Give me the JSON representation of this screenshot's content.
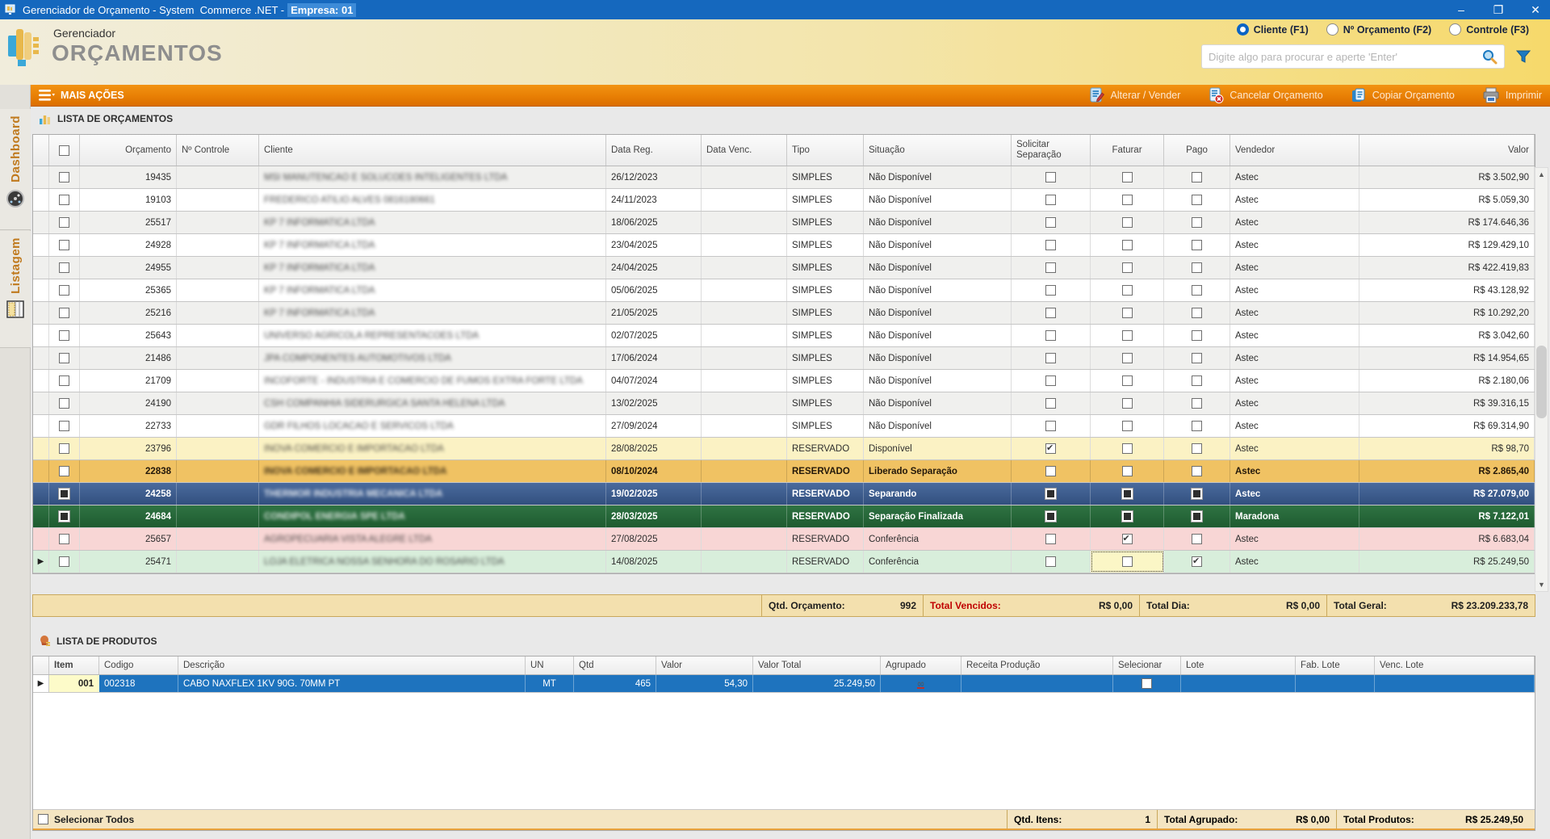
{
  "window": {
    "title": "Gerenciador de Orçamento - System  Commerce .NET -",
    "title_highlight": "Empresa: 01",
    "minimize": "–",
    "maximize": "❐",
    "close": "✕"
  },
  "header": {
    "app_subtitle": "Gerenciador",
    "app_title": "ORÇAMENTOS",
    "search_placeholder": "Digite algo para procurar e aperte 'Enter'",
    "radios": [
      {
        "label": "Cliente (F1)",
        "selected": true
      },
      {
        "label": "Nº Orçamento (F2)",
        "selected": false
      },
      {
        "label": "Controle (F3)",
        "selected": false
      }
    ]
  },
  "sidebar": {
    "tabs": [
      {
        "label": "Dashboard",
        "icon": "gauge-icon"
      },
      {
        "label": "Listagem",
        "icon": "grid-icon"
      }
    ]
  },
  "toolbar": {
    "menu_label": "MAIS AÇÕES",
    "buttons": [
      {
        "label": "Alterar / Vender",
        "icon": "edit-document-icon"
      },
      {
        "label": "Cancelar Orçamento",
        "icon": "cancel-document-icon"
      },
      {
        "label": "Copiar Orçamento",
        "icon": "copy-icon"
      },
      {
        "label": "Imprimir",
        "icon": "printer-icon"
      }
    ]
  },
  "orcamentos": {
    "section_title": "LISTA DE ORÇAMENTOS",
    "columns": [
      "",
      "",
      "Orçamento",
      "Nº Controle",
      "Cliente",
      "Data Reg.",
      "Data Venc.",
      "Tipo",
      "Situação",
      "Solicitar Separação",
      "Faturar",
      "Pago",
      "Vendedor",
      "Valor"
    ],
    "rows": [
      {
        "orcamento": "19435",
        "controle": "",
        "cliente": "MSI MANUTENCAO E SOLUCOES INTELIGENTES LTDA",
        "data_reg": "26/12/2023",
        "data_venc": "",
        "tipo": "SIMPLES",
        "situacao": "Não Disponível",
        "sel": "un",
        "solicitar": "un",
        "faturar": "un",
        "pago": "un",
        "vendedor": "Astec",
        "valor": "R$ 3.502,90",
        "style": "odd",
        "marker": false
      },
      {
        "orcamento": "19103",
        "controle": "",
        "cliente": "FREDERICO ATILIO ALVES 0816180661",
        "data_reg": "24/11/2023",
        "data_venc": "",
        "tipo": "SIMPLES",
        "situacao": "Não Disponível",
        "sel": "un",
        "solicitar": "un",
        "faturar": "un",
        "pago": "un",
        "vendedor": "Astec",
        "valor": "R$ 5.059,30",
        "style": "",
        "marker": false
      },
      {
        "orcamento": "25517",
        "controle": "",
        "cliente": "KP 7 INFORMATICA LTDA",
        "data_reg": "18/06/2025",
        "data_venc": "",
        "tipo": "SIMPLES",
        "situacao": "Não Disponível",
        "sel": "un",
        "solicitar": "un",
        "faturar": "un",
        "pago": "un",
        "vendedor": "Astec",
        "valor": "R$ 174.646,36",
        "style": "odd",
        "marker": false
      },
      {
        "orcamento": "24928",
        "controle": "",
        "cliente": "KP 7 INFORMATICA LTDA",
        "data_reg": "23/04/2025",
        "data_venc": "",
        "tipo": "SIMPLES",
        "situacao": "Não Disponível",
        "sel": "un",
        "solicitar": "un",
        "faturar": "un",
        "pago": "un",
        "vendedor": "Astec",
        "valor": "R$ 129.429,10",
        "style": "",
        "marker": false
      },
      {
        "orcamento": "24955",
        "controle": "",
        "cliente": "KP 7 INFORMATICA LTDA",
        "data_reg": "24/04/2025",
        "data_venc": "",
        "tipo": "SIMPLES",
        "situacao": "Não Disponível",
        "sel": "un",
        "solicitar": "un",
        "faturar": "un",
        "pago": "un",
        "vendedor": "Astec",
        "valor": "R$ 422.419,83",
        "style": "odd",
        "marker": false
      },
      {
        "orcamento": "25365",
        "controle": "",
        "cliente": "KP 7 INFORMATICA LTDA",
        "data_reg": "05/06/2025",
        "data_venc": "",
        "tipo": "SIMPLES",
        "situacao": "Não Disponível",
        "sel": "un",
        "solicitar": "un",
        "faturar": "un",
        "pago": "un",
        "vendedor": "Astec",
        "valor": "R$ 43.128,92",
        "style": "",
        "marker": false
      },
      {
        "orcamento": "25216",
        "controle": "",
        "cliente": "KP 7 INFORMATICA LTDA",
        "data_reg": "21/05/2025",
        "data_venc": "",
        "tipo": "SIMPLES",
        "situacao": "Não Disponível",
        "sel": "un",
        "solicitar": "un",
        "faturar": "un",
        "pago": "un",
        "vendedor": "Astec",
        "valor": "R$ 10.292,20",
        "style": "odd",
        "marker": false
      },
      {
        "orcamento": "25643",
        "controle": "",
        "cliente": "UNIVERSO AGRICOLA REPRESENTACOES LTDA",
        "data_reg": "02/07/2025",
        "data_venc": "",
        "tipo": "SIMPLES",
        "situacao": "Não Disponível",
        "sel": "un",
        "solicitar": "un",
        "faturar": "un",
        "pago": "un",
        "vendedor": "Astec",
        "valor": "R$ 3.042,60",
        "style": "",
        "marker": false
      },
      {
        "orcamento": "21486",
        "controle": "",
        "cliente": "JPA COMPONENTES AUTOMOTIVOS LTDA",
        "data_reg": "17/06/2024",
        "data_venc": "",
        "tipo": "SIMPLES",
        "situacao": "Não Disponível",
        "sel": "un",
        "solicitar": "un",
        "faturar": "un",
        "pago": "un",
        "vendedor": "Astec",
        "valor": "R$ 14.954,65",
        "style": "odd",
        "marker": false
      },
      {
        "orcamento": "21709",
        "controle": "",
        "cliente": "INCOFORTE - INDUSTRIA E COMERCIO DE FUMOS EXTRA FORTE LTDA",
        "data_reg": "04/07/2024",
        "data_venc": "",
        "tipo": "SIMPLES",
        "situacao": "Não Disponível",
        "sel": "un",
        "solicitar": "un",
        "faturar": "un",
        "pago": "un",
        "vendedor": "Astec",
        "valor": "R$ 2.180,06",
        "style": "",
        "marker": false
      },
      {
        "orcamento": "24190",
        "controle": "",
        "cliente": "CSH COMPANHIA SIDERURGICA SANTA HELENA LTDA",
        "data_reg": "13/02/2025",
        "data_venc": "",
        "tipo": "SIMPLES",
        "situacao": "Não Disponível",
        "sel": "un",
        "solicitar": "un",
        "faturar": "un",
        "pago": "un",
        "vendedor": "Astec",
        "valor": "R$ 39.316,15",
        "style": "odd",
        "marker": false
      },
      {
        "orcamento": "22733",
        "controle": "",
        "cliente": "GDR FILHOS LOCACAO E SERVICOS LTDA",
        "data_reg": "27/09/2024",
        "data_venc": "",
        "tipo": "SIMPLES",
        "situacao": "Não Disponível",
        "sel": "un",
        "solicitar": "un",
        "faturar": "un",
        "pago": "un",
        "vendedor": "Astec",
        "valor": "R$ 69.314,90",
        "style": "",
        "marker": false
      },
      {
        "orcamento": "23796",
        "controle": "",
        "cliente": "INOVA COMERCIO E IMPORTACAO LTDA",
        "data_reg": "28/08/2025",
        "data_venc": "",
        "tipo": "RESERVADO",
        "situacao": "Disponível",
        "sel": "un",
        "solicitar": "ck",
        "faturar": "un",
        "pago": "un",
        "vendedor": "Astec",
        "valor": "R$ 98,70",
        "style": "yellow",
        "marker": false
      },
      {
        "orcamento": "22838",
        "controle": "",
        "cliente": "INOVA COMERCIO E IMPORTACAO LTDA",
        "data_reg": "08/10/2024",
        "data_venc": "",
        "tipo": "RESERVADO",
        "situacao": "Liberado Separação",
        "sel": "un",
        "solicitar": "un",
        "faturar": "un",
        "pago": "un",
        "vendedor": "Astec",
        "valor": "R$ 2.865,40",
        "style": "amber",
        "marker": false
      },
      {
        "orcamento": "24258",
        "controle": "",
        "cliente": "THERMOR INDUSTRIA MECANICA LTDA",
        "data_reg": "19/02/2025",
        "data_venc": "",
        "tipo": "RESERVADO",
        "situacao": "Separando",
        "sel": "fl",
        "solicitar": "fl",
        "faturar": "fl",
        "pago": "fl",
        "vendedor": "Astec",
        "valor": "R$ 27.079,00",
        "style": "blue",
        "marker": false
      },
      {
        "orcamento": "24684",
        "controle": "",
        "cliente": "CONDIPOL ENERGIA SPE LTDA",
        "data_reg": "28/03/2025",
        "data_venc": "",
        "tipo": "RESERVADO",
        "situacao": "Separação Finalizada",
        "sel": "fl",
        "solicitar": "fl",
        "faturar": "fl",
        "pago": "fl",
        "vendedor": "Maradona",
        "valor": "R$ 7.122,01",
        "style": "green",
        "marker": false
      },
      {
        "orcamento": "25657",
        "controle": "",
        "cliente": "AGROPECUARIA VISTA ALEGRE LTDA",
        "data_reg": "27/08/2025",
        "data_venc": "",
        "tipo": "RESERVADO",
        "situacao": "Conferência",
        "sel": "un",
        "solicitar": "un",
        "faturar": "ck",
        "pago": "un",
        "vendedor": "Astec",
        "valor": "R$ 6.683,04",
        "style": "pink",
        "marker": false
      },
      {
        "orcamento": "25471",
        "controle": "",
        "cliente": "LOJA ELETRICA NOSSA SENHORA DO ROSARIO LTDA",
        "data_reg": "14/08/2025",
        "data_venc": "",
        "tipo": "RESERVADO",
        "situacao": "Conferência",
        "sel": "un",
        "solicitar": "un",
        "faturar": "fc",
        "pago": "ck",
        "vendedor": "Astec",
        "valor": "R$ 25.249,50",
        "style": "lgreen",
        "marker": true
      }
    ],
    "summary": {
      "qtd_label": "Qtd. Orçamento:",
      "qtd_value": "992",
      "vencidos_label": "Total Vencidos:",
      "vencidos_value": "R$ 0,00",
      "dia_label": "Total Dia:",
      "dia_value": "R$ 0,00",
      "geral_label": "Total Geral:",
      "geral_value": "R$ 23.209.233,78"
    }
  },
  "produtos": {
    "section_title": "LISTA DE PRODUTOS",
    "columns": [
      "",
      "Item",
      "Codigo",
      "Descrição",
      "UN",
      "Qtd",
      "Valor",
      "Valor Total",
      "Agrupado",
      "Receita Produção",
      "Selecionar",
      "Lote",
      "Fab. Lote",
      "Venc. Lote"
    ],
    "rows": [
      {
        "item": "001",
        "codigo": "002318",
        "descricao": "CABO NAXFLEX 1KV 90G. 70MM  PT",
        "un": "MT",
        "qtd": "465",
        "valor": "54,30",
        "valor_total": "25.249,50",
        "agrupado": true,
        "receita": "",
        "selecionar": "un",
        "lote": "",
        "fab_lote": "",
        "venc_lote": "",
        "marker": true
      }
    ],
    "footer": {
      "select_all_label": "Selecionar Todos",
      "qtd_itens_label": "Qtd. Itens:",
      "qtd_itens_value": "1",
      "total_agrupado_label": "Total Agrupado:",
      "total_agrupado_value": "R$ 0,00",
      "total_produtos_label": "Total Produtos:",
      "total_produtos_value": "R$ 25.249,50"
    }
  }
}
